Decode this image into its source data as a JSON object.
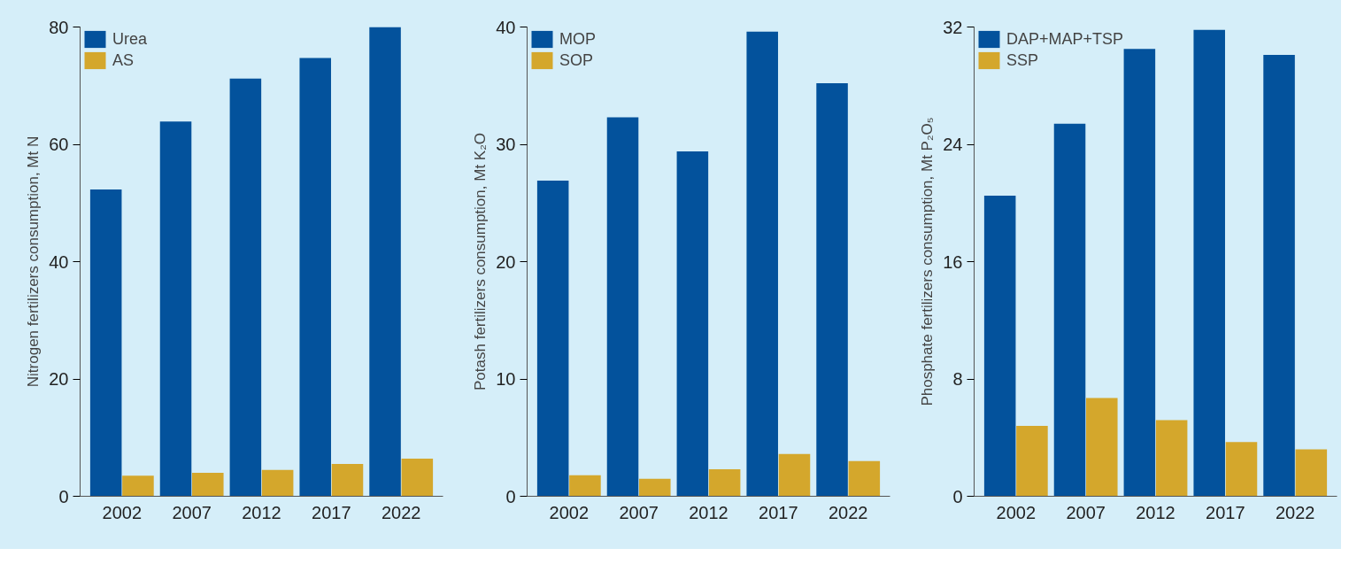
{
  "chart_data": [
    {
      "type": "bar",
      "ylabel": "Nitrogen fertilizers consumption, Mt N",
      "categories": [
        "2002",
        "2007",
        "2012",
        "2017",
        "2022"
      ],
      "series": [
        {
          "name": "Urea",
          "color": "#03529c",
          "values": [
            52.3,
            63.9,
            71.2,
            74.7,
            80.0
          ]
        },
        {
          "name": "AS",
          "color": "#d4a72c",
          "values": [
            3.5,
            4.0,
            4.5,
            5.5,
            6.4
          ]
        }
      ],
      "ylim": [
        0,
        80
      ],
      "yticks": [
        0,
        20,
        40,
        60,
        80
      ],
      "legend": "top left"
    },
    {
      "type": "bar",
      "ylabel": "Potash fertilizers consumption, Mt K₂O",
      "categories": [
        "2002",
        "2007",
        "2012",
        "2017",
        "2022"
      ],
      "series": [
        {
          "name": "MOP",
          "color": "#03529c",
          "values": [
            26.9,
            32.3,
            29.4,
            39.6,
            35.2
          ]
        },
        {
          "name": "SOP",
          "color": "#d4a72c",
          "values": [
            1.8,
            1.5,
            2.3,
            3.6,
            3.0
          ]
        }
      ],
      "ylim": [
        0,
        40
      ],
      "yticks": [
        0,
        10,
        20,
        30,
        40
      ],
      "legend": "top left"
    },
    {
      "type": "bar",
      "ylabel": "Phosphate fertilizers consumption, Mt P₂O₅",
      "categories": [
        "2002",
        "2007",
        "2012",
        "2017",
        "2022"
      ],
      "series": [
        {
          "name": "DAP+MAP+TSP",
          "color": "#03529c",
          "values": [
            20.5,
            25.4,
            30.5,
            31.8,
            30.1
          ]
        },
        {
          "name": "SSP",
          "color": "#d4a72c",
          "values": [
            4.8,
            6.7,
            5.2,
            3.7,
            3.2
          ]
        }
      ],
      "ylim": [
        0,
        32
      ],
      "yticks": [
        0,
        8,
        16,
        24,
        32
      ],
      "legend": "top left"
    }
  ]
}
